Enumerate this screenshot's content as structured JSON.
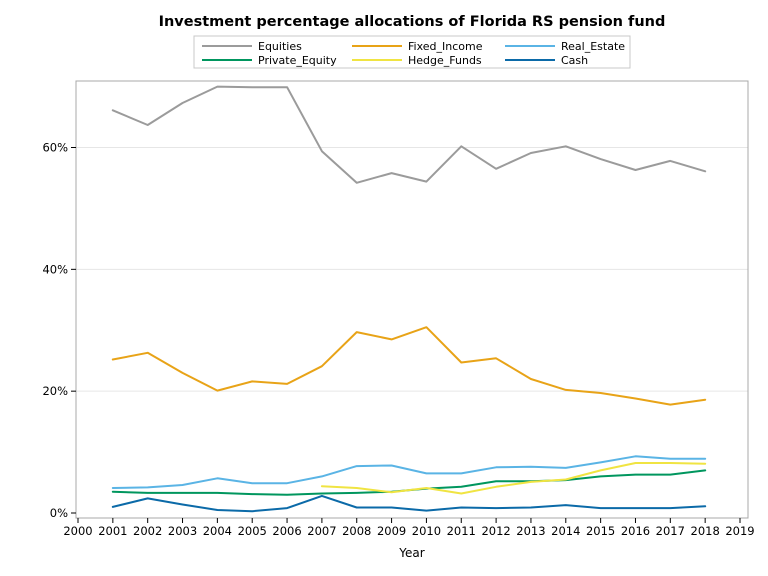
{
  "chart_data": {
    "type": "line",
    "title": "Investment percentage allocations of Florida RS pension fund",
    "xlabel": "Year",
    "ylabel": "",
    "xlim": [
      2000,
      2019
    ],
    "ylim": [
      0,
      0.71
    ],
    "x_ticks": [
      "2000",
      "2001",
      "2002",
      "2003",
      "2004",
      "2005",
      "2006",
      "2007",
      "2008",
      "2009",
      "2010",
      "2011",
      "2012",
      "2013",
      "2014",
      "2015",
      "2016",
      "2017",
      "2018",
      "2019"
    ],
    "y_ticks": [
      {
        "value": 0,
        "label": "0%"
      },
      {
        "value": 0.2,
        "label": "20%"
      },
      {
        "value": 0.4,
        "label": "40%"
      },
      {
        "value": 0.6,
        "label": "60%"
      }
    ],
    "grid": "horizontal",
    "legend_position": "top",
    "series": [
      {
        "name": "Equities",
        "color": "#9b9b9b",
        "x": [
          2001,
          2002,
          2003,
          2004,
          2005,
          2006,
          2007,
          2008,
          2009,
          2010,
          2011,
          2012,
          2013,
          2014,
          2015,
          2016,
          2017,
          2018
        ],
        "values": [
          0.661,
          0.637,
          0.673,
          0.7,
          0.699,
          0.699,
          0.594,
          0.542,
          0.558,
          0.544,
          0.602,
          0.565,
          0.591,
          0.602,
          0.581,
          0.563,
          0.578,
          0.561
        ]
      },
      {
        "name": "Fixed_Income",
        "color": "#e8a317",
        "x": [
          2001,
          2002,
          2003,
          2004,
          2005,
          2006,
          2007,
          2008,
          2009,
          2010,
          2011,
          2012,
          2013,
          2014,
          2015,
          2016,
          2017,
          2018
        ],
        "values": [
          0.252,
          0.263,
          0.23,
          0.201,
          0.216,
          0.212,
          0.241,
          0.297,
          0.285,
          0.305,
          0.247,
          0.254,
          0.22,
          0.202,
          0.197,
          0.188,
          0.178,
          0.186
        ]
      },
      {
        "name": "Real_Estate",
        "color": "#5ab4e5",
        "x": [
          2001,
          2002,
          2003,
          2004,
          2005,
          2006,
          2007,
          2008,
          2009,
          2010,
          2011,
          2012,
          2013,
          2014,
          2015,
          2016,
          2017,
          2018
        ],
        "values": [
          0.041,
          0.042,
          0.046,
          0.057,
          0.049,
          0.049,
          0.06,
          0.077,
          0.078,
          0.065,
          0.065,
          0.075,
          0.076,
          0.074,
          0.083,
          0.093,
          0.089,
          0.089
        ]
      },
      {
        "name": "Private_Equity",
        "color": "#00965e",
        "x": [
          2001,
          2002,
          2003,
          2004,
          2005,
          2006,
          2007,
          2008,
          2009,
          2010,
          2011,
          2012,
          2013,
          2014,
          2015,
          2016,
          2017,
          2018
        ],
        "values": [
          0.035,
          0.033,
          0.033,
          0.033,
          0.031,
          0.03,
          0.032,
          0.033,
          0.035,
          0.04,
          0.043,
          0.052,
          0.052,
          0.054,
          0.06,
          0.063,
          0.063,
          0.07
        ]
      },
      {
        "name": "Hedge_Funds",
        "color": "#f0e442",
        "x": [
          2007,
          2008,
          2009,
          2010,
          2011,
          2012,
          2013,
          2014,
          2015,
          2016,
          2017,
          2018
        ],
        "values": [
          0.044,
          0.041,
          0.034,
          0.041,
          0.032,
          0.043,
          0.051,
          0.055,
          0.07,
          0.082,
          0.082,
          0.081
        ]
      },
      {
        "name": "Cash",
        "color": "#0b6aa8",
        "x": [
          2001,
          2002,
          2003,
          2004,
          2005,
          2006,
          2007,
          2008,
          2009,
          2010,
          2011,
          2012,
          2013,
          2014,
          2015,
          2016,
          2017,
          2018
        ],
        "values": [
          0.01,
          0.024,
          0.014,
          0.005,
          0.003,
          0.008,
          0.028,
          0.009,
          0.009,
          0.004,
          0.009,
          0.008,
          0.009,
          0.013,
          0.008,
          0.008,
          0.008,
          0.011
        ]
      }
    ],
    "legend_order": [
      "Equities",
      "Fixed_Income",
      "Real_Estate",
      "Private_Equity",
      "Hedge_Funds",
      "Cash"
    ]
  }
}
